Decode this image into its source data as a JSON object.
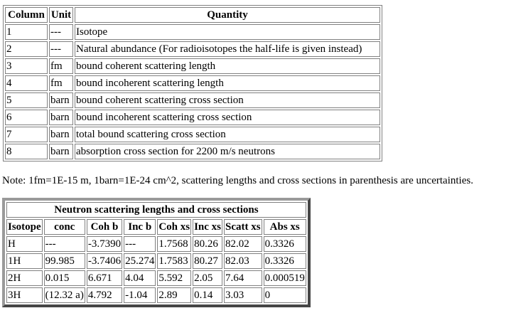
{
  "legend_table": {
    "headers": [
      "Column",
      "Unit",
      "Quantity"
    ],
    "rows": [
      [
        "1",
        "---",
        "Isotope"
      ],
      [
        "2",
        "---",
        "Natural abundance (For radioisotopes the half-life is given instead)"
      ],
      [
        "3",
        "fm",
        "bound coherent scattering length"
      ],
      [
        "4",
        "fm",
        "bound incoherent scattering length"
      ],
      [
        "5",
        "barn",
        "bound coherent scattering cross section"
      ],
      [
        "6",
        "barn",
        "bound incoherent scattering cross section"
      ],
      [
        "7",
        "barn",
        "total bound scattering cross section"
      ],
      [
        "8",
        "barn",
        "absorption cross section for 2200 m/s neutrons"
      ]
    ]
  },
  "note": "Note: 1fm=1E-15 m, 1barn=1E-24 cm^2, scattering lengths and cross sections in parenthesis are uncertainties.",
  "data_table": {
    "title": "Neutron scattering lengths and cross sections",
    "headers": [
      "Isotope",
      "conc",
      "Coh b",
      "Inc b",
      "Coh xs",
      "Inc xs",
      "Scatt xs",
      "Abs xs"
    ],
    "rows": [
      [
        "H",
        "---",
        "-3.7390",
        "---",
        "1.7568",
        "80.26",
        "82.02",
        "0.3326"
      ],
      [
        "1H",
        "99.985",
        "-3.7406",
        "25.274",
        "1.7583",
        "80.27",
        "82.03",
        "0.3326"
      ],
      [
        "2H",
        "0.015",
        "6.671",
        "4.04",
        "5.592",
        "2.05",
        "7.64",
        "0.000519"
      ],
      [
        "3H",
        "(12.32 a)",
        "4.792",
        "-1.04",
        "2.89",
        "0.14",
        "3.03",
        "0"
      ]
    ]
  }
}
